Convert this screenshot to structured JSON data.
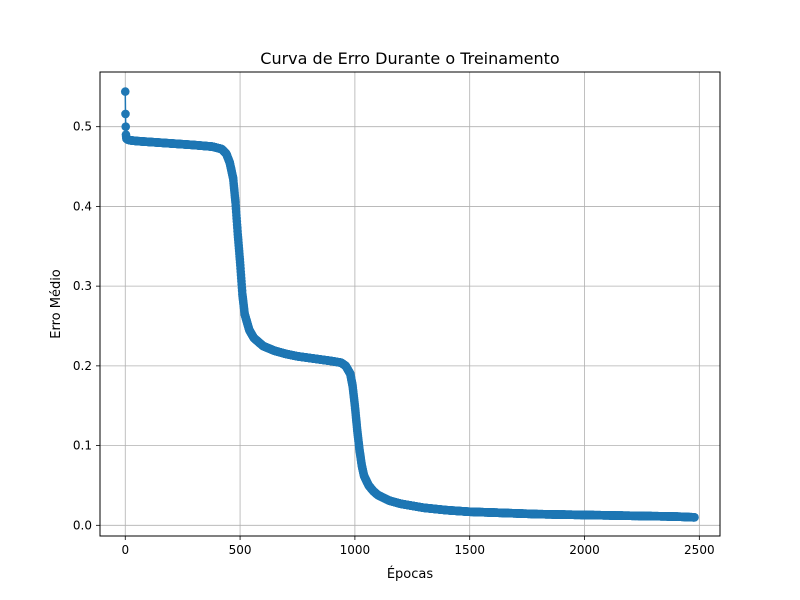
{
  "chart_data": {
    "type": "line",
    "title": "Curva de Erro Durante o Treinamento",
    "xlabel": "Épocas",
    "ylabel": "Erro Médio",
    "xlim": [
      -110,
      2590
    ],
    "ylim": [
      -0.0134,
      0.5686
    ],
    "xticks": [
      0,
      500,
      1000,
      1500,
      2000,
      2500
    ],
    "yticks": [
      0.0,
      0.1,
      0.2,
      0.3,
      0.4,
      0.5
    ],
    "xtick_labels": [
      "0",
      "500",
      "1000",
      "1500",
      "2000",
      "2500"
    ],
    "ytick_labels": [
      "0.0",
      "0.1",
      "0.2",
      "0.3",
      "0.4",
      "0.5"
    ],
    "grid": true,
    "legend": "none",
    "marker": "circle",
    "series": [
      {
        "color": "#1f77b4",
        "num_points": 2480,
        "keypoints": {
          "x": [
            0,
            1,
            2,
            3,
            5,
            10,
            20,
            50,
            100,
            200,
            300,
            380,
            420,
            440,
            455,
            470,
            480,
            490,
            500,
            510,
            520,
            540,
            560,
            600,
            650,
            700,
            750,
            800,
            850,
            900,
            940,
            960,
            980,
            990,
            1000,
            1010,
            1020,
            1030,
            1040,
            1060,
            1080,
            1100,
            1150,
            1200,
            1300,
            1400,
            1500,
            1600,
            1800,
            2000,
            2200,
            2400,
            2479
          ],
          "y": [
            0.544,
            0.516,
            0.5,
            0.49,
            0.485,
            0.484,
            0.483,
            0.482,
            0.481,
            0.479,
            0.477,
            0.475,
            0.472,
            0.466,
            0.455,
            0.435,
            0.405,
            0.365,
            0.33,
            0.29,
            0.265,
            0.245,
            0.235,
            0.225,
            0.219,
            0.215,
            0.212,
            0.21,
            0.208,
            0.206,
            0.204,
            0.2,
            0.19,
            0.175,
            0.15,
            0.12,
            0.095,
            0.075,
            0.062,
            0.05,
            0.043,
            0.038,
            0.031,
            0.027,
            0.022,
            0.019,
            0.017,
            0.016,
            0.014,
            0.013,
            0.012,
            0.011,
            0.01
          ]
        }
      }
    ]
  }
}
